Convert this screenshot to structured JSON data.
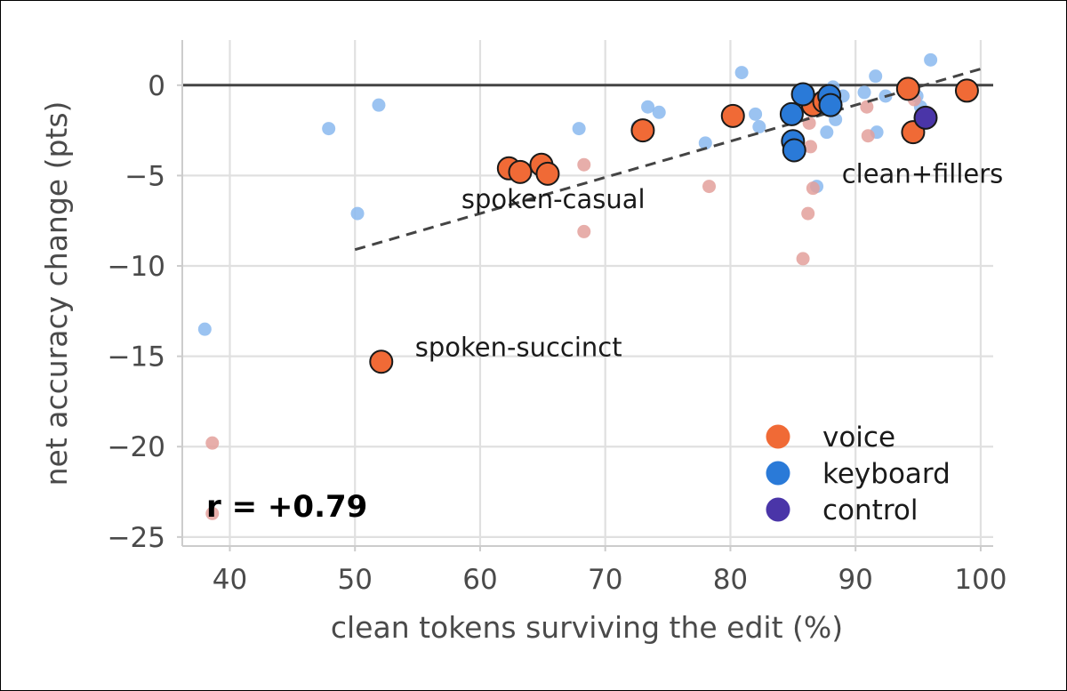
{
  "chart_data": {
    "type": "scatter",
    "xlabel": "clean tokens surviving the edit (%)",
    "ylabel": "net accuracy change (pts)",
    "xlim": [
      36.2,
      101.0
    ],
    "ylim": [
      -25.5,
      2.5
    ],
    "xticks": [
      40,
      50,
      60,
      70,
      80,
      90,
      100
    ],
    "yticks": [
      0,
      -5,
      -10,
      -15,
      -20,
      -25
    ],
    "xtick_labels": [
      "40",
      "50",
      "60",
      "70",
      "80",
      "90",
      "100"
    ],
    "ytick_labels": [
      "0",
      "−5",
      "−10",
      "−15",
      "−20",
      "−25"
    ],
    "grid": true,
    "zero_line": 0,
    "trend_line": {
      "x": [
        50,
        100.5
      ],
      "y": [
        -9.1,
        1.0
      ],
      "style": "dashed"
    },
    "correlation_text": "r = +0.79",
    "legend": {
      "placement": "lower-right",
      "entries": [
        {
          "label": "voice",
          "color": "#f06a36"
        },
        {
          "label": "keyboard",
          "color": "#2a7ad8"
        },
        {
          "label": "control",
          "color": "#4a35a8"
        }
      ]
    },
    "annotations": [
      {
        "text": "spoken-casual",
        "x": 58.5,
        "y": -6.8
      },
      {
        "text": "spoken-succinct",
        "x": 54.8,
        "y": -15.0
      },
      {
        "text": "clean+fillers",
        "x": 88.9,
        "y": -5.4
      }
    ],
    "background_points": [
      {
        "x": 38.0,
        "y": -13.5,
        "color": "#8ab8ee"
      },
      {
        "x": 47.9,
        "y": -2.4,
        "color": "#8ab8ee"
      },
      {
        "x": 50.2,
        "y": -7.1,
        "color": "#8ab8ee"
      },
      {
        "x": 51.9,
        "y": -1.1,
        "color": "#8ab8ee"
      },
      {
        "x": 67.9,
        "y": -2.4,
        "color": "#8ab8ee"
      },
      {
        "x": 72.6,
        "y": -2.3,
        "color": "#8ab8ee"
      },
      {
        "x": 73.4,
        "y": -1.2,
        "color": "#8ab8ee"
      },
      {
        "x": 74.3,
        "y": -1.5,
        "color": "#8ab8ee"
      },
      {
        "x": 78.0,
        "y": -3.2,
        "color": "#8ab8ee"
      },
      {
        "x": 80.9,
        "y": 0.7,
        "color": "#8ab8ee"
      },
      {
        "x": 82.0,
        "y": -1.6,
        "color": "#8ab8ee"
      },
      {
        "x": 82.3,
        "y": -2.3,
        "color": "#8ab8ee"
      },
      {
        "x": 86.9,
        "y": -5.6,
        "color": "#8ab8ee"
      },
      {
        "x": 87.7,
        "y": -2.6,
        "color": "#8ab8ee"
      },
      {
        "x": 87.8,
        "y": -1.2,
        "color": "#8ab8ee"
      },
      {
        "x": 88.2,
        "y": -0.1,
        "color": "#8ab8ee"
      },
      {
        "x": 88.4,
        "y": -1.9,
        "color": "#8ab8ee"
      },
      {
        "x": 89.0,
        "y": -0.6,
        "color": "#8ab8ee"
      },
      {
        "x": 90.7,
        "y": -0.4,
        "color": "#8ab8ee"
      },
      {
        "x": 91.6,
        "y": 0.5,
        "color": "#8ab8ee"
      },
      {
        "x": 91.7,
        "y": -2.6,
        "color": "#8ab8ee"
      },
      {
        "x": 92.4,
        "y": -0.6,
        "color": "#8ab8ee"
      },
      {
        "x": 94.9,
        "y": -0.6,
        "color": "#8ab8ee"
      },
      {
        "x": 95.2,
        "y": -1.2,
        "color": "#8ab8ee"
      },
      {
        "x": 96.0,
        "y": 1.4,
        "color": "#8ab8ee"
      },
      {
        "x": 38.6,
        "y": -19.8,
        "color": "#e3a09b"
      },
      {
        "x": 38.6,
        "y": -23.7,
        "color": "#e3a09b"
      },
      {
        "x": 68.3,
        "y": -4.4,
        "color": "#e3a09b"
      },
      {
        "x": 68.3,
        "y": -8.1,
        "color": "#e3a09b"
      },
      {
        "x": 78.3,
        "y": -5.6,
        "color": "#e3a09b"
      },
      {
        "x": 85.8,
        "y": -9.6,
        "color": "#e3a09b"
      },
      {
        "x": 86.2,
        "y": -7.1,
        "color": "#e3a09b"
      },
      {
        "x": 86.3,
        "y": -2.1,
        "color": "#e3a09b"
      },
      {
        "x": 86.4,
        "y": -3.4,
        "color": "#e3a09b"
      },
      {
        "x": 86.6,
        "y": -5.7,
        "color": "#e3a09b"
      },
      {
        "x": 90.9,
        "y": -1.2,
        "color": "#e3a09b"
      },
      {
        "x": 91.0,
        "y": -2.8,
        "color": "#e3a09b"
      },
      {
        "x": 94.7,
        "y": -0.8,
        "color": "#e3a09b"
      }
    ],
    "series": [
      {
        "name": "voice",
        "color": "#f06a36",
        "points": [
          {
            "x": 62.3,
            "y": -4.6
          },
          {
            "x": 63.2,
            "y": -4.8
          },
          {
            "x": 64.9,
            "y": -4.4
          },
          {
            "x": 65.4,
            "y": -4.9
          },
          {
            "x": 73.0,
            "y": -2.5
          },
          {
            "x": 80.2,
            "y": -1.7
          },
          {
            "x": 86.6,
            "y": -1.1
          },
          {
            "x": 87.5,
            "y": -0.9
          },
          {
            "x": 94.2,
            "y": -0.2
          },
          {
            "x": 94.6,
            "y": -2.6
          },
          {
            "x": 98.9,
            "y": -0.3
          },
          {
            "x": 52.1,
            "y": -15.3
          }
        ]
      },
      {
        "name": "keyboard",
        "color": "#2a7ad8",
        "points": [
          {
            "x": 84.9,
            "y": -1.6
          },
          {
            "x": 85.0,
            "y": -3.1
          },
          {
            "x": 85.1,
            "y": -3.6
          },
          {
            "x": 85.8,
            "y": -0.5
          },
          {
            "x": 87.9,
            "y": -0.6
          },
          {
            "x": 88.0,
            "y": -1.1
          }
        ]
      },
      {
        "name": "control",
        "color": "#4a35a8",
        "points": [
          {
            "x": 95.6,
            "y": -1.8
          }
        ]
      }
    ]
  }
}
